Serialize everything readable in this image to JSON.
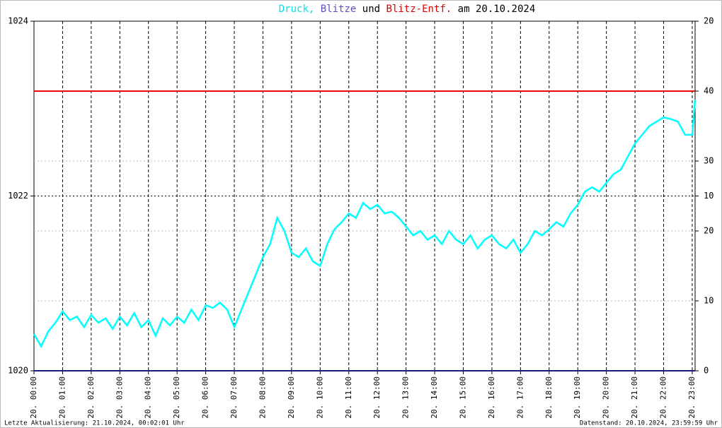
{
  "chart_data": {
    "type": "line",
    "title_parts": [
      {
        "text": "Druck,",
        "color": "#00e5e5"
      },
      {
        "text": "Blitze",
        "color": "#5b4fc4"
      },
      {
        "text": "und",
        "color": "#000000"
      },
      {
        "text": "Blitz-Entf.",
        "color": "#dd0000"
      },
      {
        "text": "am 20.10.2024",
        "color": "#000000"
      }
    ],
    "xlim": [
      0,
      23.1
    ],
    "xticks": [
      {
        "value": 0,
        "label": "20. 00:00"
      },
      {
        "value": 1,
        "label": "20. 01:00"
      },
      {
        "value": 2,
        "label": "20. 02:00"
      },
      {
        "value": 3,
        "label": "20. 03:00"
      },
      {
        "value": 4,
        "label": "20. 04:00"
      },
      {
        "value": 5,
        "label": "20. 05:00"
      },
      {
        "value": 6,
        "label": "20. 06:00"
      },
      {
        "value": 7,
        "label": "20. 07:00"
      },
      {
        "value": 8,
        "label": "20. 08:00"
      },
      {
        "value": 9,
        "label": "20. 09:00"
      },
      {
        "value": 10,
        "label": "20. 10:00"
      },
      {
        "value": 11,
        "label": "20. 11:00"
      },
      {
        "value": 12,
        "label": "20. 12:00"
      },
      {
        "value": 13,
        "label": "20. 13:00"
      },
      {
        "value": 14,
        "label": "20. 14:00"
      },
      {
        "value": 15,
        "label": "20. 15:00"
      },
      {
        "value": 16,
        "label": "20. 16:00"
      },
      {
        "value": 17,
        "label": "20. 17:00"
      },
      {
        "value": 18,
        "label": "20. 18:00"
      },
      {
        "value": 19,
        "label": "20. 19:00"
      },
      {
        "value": 20,
        "label": "20. 20:00"
      },
      {
        "value": 21,
        "label": "20. 21:00"
      },
      {
        "value": 22,
        "label": "20. 22:00"
      },
      {
        "value": 23,
        "label": "20. 23:00"
      }
    ],
    "ylim": [
      1020,
      1024
    ],
    "yticks": [
      1020,
      1022,
      1024
    ],
    "y2lim": [
      0,
      50
    ],
    "y2ticks": [
      0,
      10,
      20,
      30,
      40
    ],
    "y3lim": [
      0,
      20
    ],
    "y3ticks": [
      10,
      20
    ],
    "grid": true,
    "series": [
      {
        "name": "Druck",
        "color": "#00ffff",
        "axis": "y",
        "x": [
          0,
          0.25,
          0.5,
          0.75,
          1,
          1.25,
          1.5,
          1.75,
          2,
          2.25,
          2.5,
          2.75,
          3,
          3.25,
          3.5,
          3.75,
          4,
          4.25,
          4.5,
          4.75,
          5,
          5.25,
          5.5,
          5.75,
          6,
          6.25,
          6.5,
          6.75,
          7,
          7.25,
          7.5,
          7.75,
          8,
          8.25,
          8.5,
          8.75,
          9,
          9.25,
          9.5,
          9.75,
          10,
          10.25,
          10.5,
          10.75,
          11,
          11.25,
          11.5,
          11.75,
          12,
          12.25,
          12.5,
          12.75,
          13,
          13.25,
          13.5,
          13.75,
          14,
          14.25,
          14.5,
          14.75,
          15,
          15.25,
          15.5,
          15.75,
          16,
          16.25,
          16.5,
          16.75,
          17,
          17.25,
          17.5,
          17.75,
          18,
          18.25,
          18.5,
          18.75,
          19,
          19.25,
          19.5,
          19.75,
          20,
          20.25,
          20.5,
          20.75,
          21,
          21.25,
          21.5,
          21.75,
          22,
          22.25,
          22.5,
          22.75,
          23,
          23.1
        ],
        "values": [
          1020.42,
          1020.28,
          1020.45,
          1020.55,
          1020.68,
          1020.58,
          1020.62,
          1020.5,
          1020.64,
          1020.55,
          1020.6,
          1020.48,
          1020.62,
          1020.52,
          1020.66,
          1020.5,
          1020.58,
          1020.4,
          1020.6,
          1020.52,
          1020.62,
          1020.55,
          1020.7,
          1020.58,
          1020.75,
          1020.72,
          1020.78,
          1020.7,
          1020.5,
          1020.7,
          1020.9,
          1021.1,
          1021.3,
          1021.45,
          1021.75,
          1021.6,
          1021.35,
          1021.3,
          1021.4,
          1021.25,
          1021.2,
          1021.45,
          1021.62,
          1021.7,
          1021.8,
          1021.75,
          1021.92,
          1021.85,
          1021.9,
          1021.8,
          1021.82,
          1021.75,
          1021.65,
          1021.55,
          1021.6,
          1021.5,
          1021.55,
          1021.45,
          1021.6,
          1021.5,
          1021.45,
          1021.55,
          1021.4,
          1021.5,
          1021.55,
          1021.45,
          1021.4,
          1021.5,
          1021.35,
          1021.45,
          1021.6,
          1021.55,
          1021.62,
          1021.7,
          1021.65,
          1021.8,
          1021.9,
          1022.05,
          1022.1,
          1022.05,
          1022.15,
          1022.25,
          1022.3,
          1022.45,
          1022.6,
          1022.7,
          1022.8,
          1022.85,
          1022.9,
          1022.88,
          1022.85,
          1022.7,
          1022.7,
          1023.1
        ]
      },
      {
        "name": "Blitze",
        "color": "#1a1a7a",
        "axis": "y3",
        "x": [
          0,
          23.1
        ],
        "values": [
          0,
          0
        ]
      },
      {
        "name": "Blitz-Entf.",
        "color": "#ee0000",
        "axis": "y2",
        "x": [
          0,
          23.1
        ],
        "values": [
          40,
          40
        ]
      }
    ],
    "footer_left": "Letzte Aktualisierung: 21.10.2024, 00:02:01 Uhr",
    "footer_right": "Datenstand: 20.10.2024, 23:59:59 Uhr"
  }
}
